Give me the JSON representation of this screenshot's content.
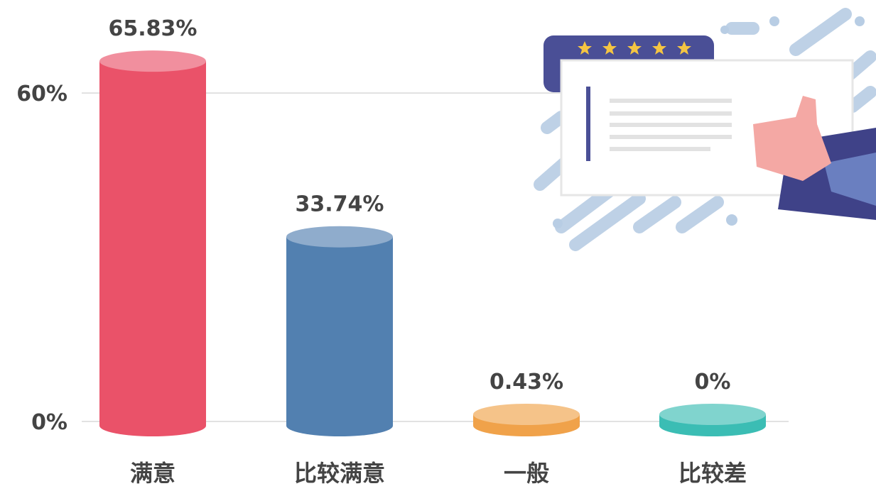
{
  "chart_data": {
    "type": "cylinder-bar",
    "categories": [
      "满意",
      "比较满意",
      "一般",
      "比较差"
    ],
    "values": [
      65.83,
      33.74,
      0.43,
      0
    ],
    "value_labels": [
      "65.83%",
      "33.74%",
      "0.43%",
      "0%"
    ],
    "colors": [
      "#ea5269",
      "#5280b0",
      "#f0a24a",
      "#3bbdb4"
    ],
    "ylim": [
      0,
      70
    ],
    "yticks": [
      {
        "value": 0,
        "label": "0%"
      },
      {
        "value": 60,
        "label": "60%"
      }
    ],
    "grid": true
  }
}
